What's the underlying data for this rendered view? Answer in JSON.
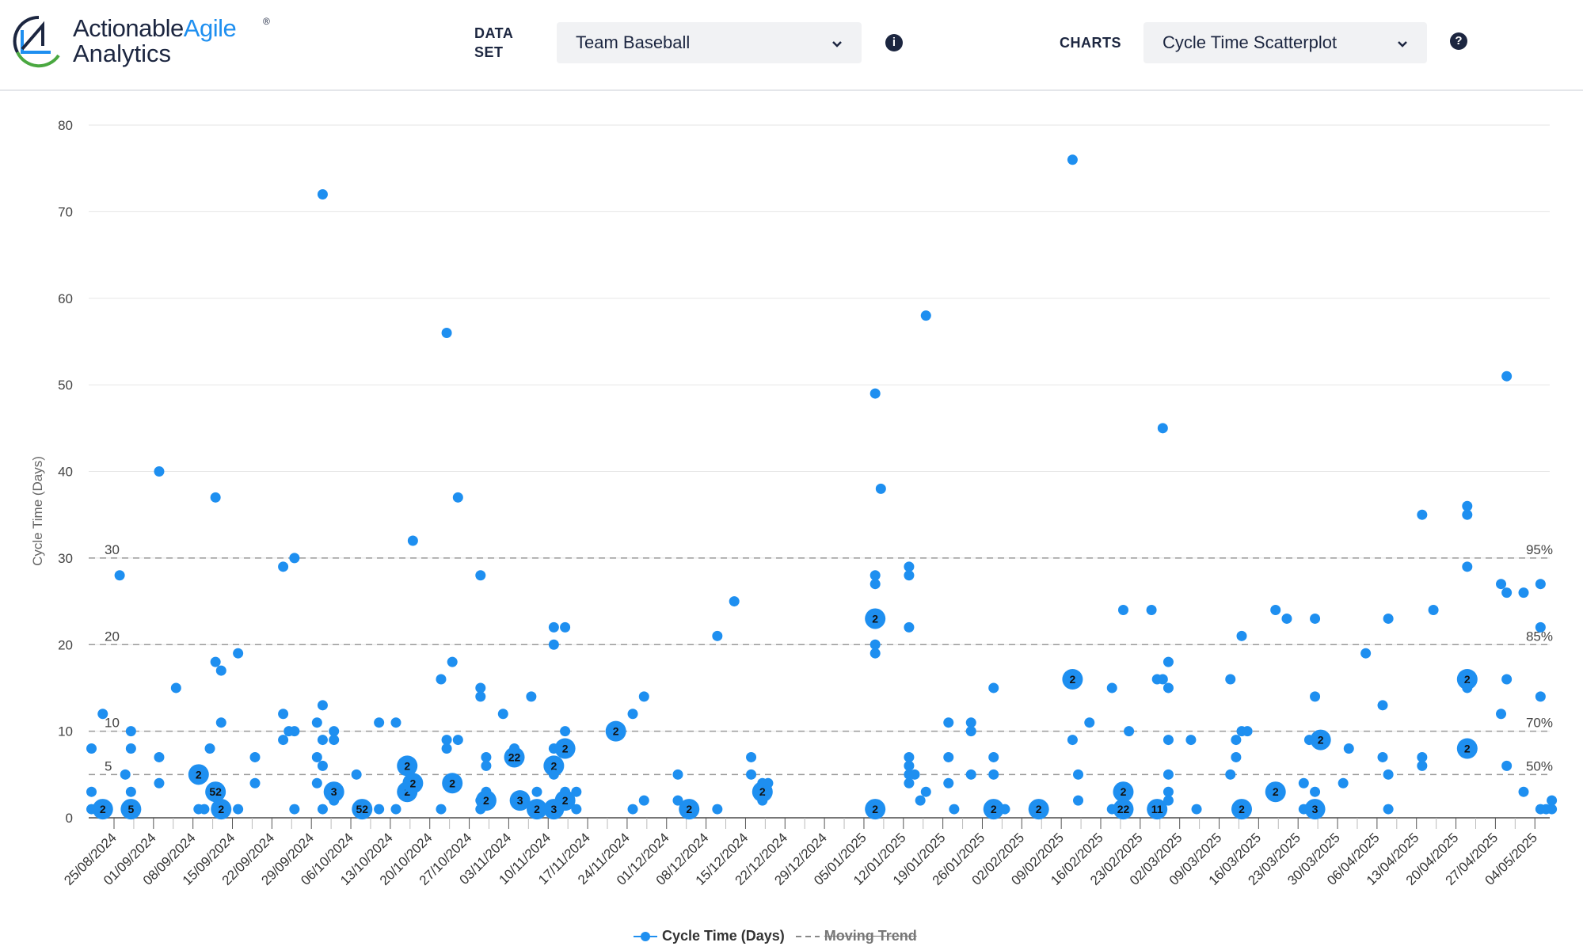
{
  "header": {
    "logo": {
      "word1": "Actionable",
      "word2": "Agile",
      "word3": "Analytics",
      "reg": "®"
    },
    "dataset_label_1": "DATA",
    "dataset_label_2": "SET",
    "dataset_value": "Team Baseball",
    "charts_label": "CHARTS",
    "charts_value": "Cycle Time Scatterplot",
    "info_icon": "i",
    "help_icon": "?"
  },
  "colors": {
    "accent": "#1e8ff0",
    "navy": "#1c2640"
  },
  "chart_data": {
    "type": "scatter",
    "ylabel": "Cycle Time (Days)",
    "ylim": [
      0,
      80
    ],
    "yticks": [
      0,
      10,
      20,
      30,
      40,
      50,
      60,
      70,
      80
    ],
    "x_origin": "25/08/2024",
    "xticks": [
      "25/08/2024",
      "01/09/2024",
      "08/09/2024",
      "15/09/2024",
      "22/09/2024",
      "29/09/2024",
      "06/10/2024",
      "13/10/2024",
      "20/10/2024",
      "27/10/2024",
      "03/11/2024",
      "10/11/2024",
      "17/11/2024",
      "24/11/2024",
      "01/12/2024",
      "08/12/2024",
      "15/12/2024",
      "22/12/2024",
      "29/12/2024",
      "05/01/2025",
      "12/01/2025",
      "19/01/2025",
      "26/01/2025",
      "02/02/2025",
      "09/02/2025",
      "16/02/2025",
      "23/02/2025",
      "02/03/2025",
      "09/03/2025",
      "16/03/2025",
      "23/03/2025",
      "30/03/2025",
      "06/04/2025",
      "13/04/2025",
      "20/04/2025",
      "27/04/2025",
      "04/05/2025"
    ],
    "percentiles": [
      {
        "label": "95%",
        "value": 30,
        "left": "30"
      },
      {
        "label": "85%",
        "value": 20,
        "left": "20"
      },
      {
        "label": "70%",
        "value": 10,
        "left": "10"
      },
      {
        "label": "50%",
        "value": 5,
        "left": "5"
      }
    ],
    "legend": [
      {
        "name": "Cycle Time (Days)"
      },
      {
        "name": "Moving Trend"
      }
    ],
    "points_note": "[day offset from x_origin, cycle time days, item count]",
    "points": [
      [
        -4,
        8,
        1
      ],
      [
        -4,
        3,
        1
      ],
      [
        -4,
        1,
        1
      ],
      [
        -2,
        12,
        1
      ],
      [
        -2,
        1,
        2
      ],
      [
        1,
        28,
        1
      ],
      [
        2,
        5,
        1
      ],
      [
        3,
        10,
        1
      ],
      [
        3,
        8,
        1
      ],
      [
        3,
        3,
        1
      ],
      [
        3,
        1,
        5
      ],
      [
        8,
        40,
        1
      ],
      [
        8,
        7,
        1
      ],
      [
        8,
        4,
        1
      ],
      [
        11,
        15,
        1
      ],
      [
        15,
        5,
        2
      ],
      [
        15,
        1,
        1
      ],
      [
        16,
        1,
        1
      ],
      [
        17,
        8,
        1
      ],
      [
        18,
        37,
        1
      ],
      [
        18,
        18,
        1
      ],
      [
        19,
        17,
        1
      ],
      [
        19,
        11,
        1
      ],
      [
        18,
        3,
        52
      ],
      [
        19,
        1,
        2
      ],
      [
        22,
        19,
        1
      ],
      [
        22,
        1,
        1
      ],
      [
        25,
        7,
        1
      ],
      [
        25,
        4,
        1
      ],
      [
        30,
        29,
        1
      ],
      [
        30,
        12,
        1
      ],
      [
        30,
        9,
        1
      ],
      [
        31,
        10,
        1
      ],
      [
        32,
        30,
        1
      ],
      [
        32,
        10,
        1
      ],
      [
        32,
        1,
        1
      ],
      [
        36,
        11,
        1
      ],
      [
        36,
        7,
        1
      ],
      [
        36,
        4,
        1
      ],
      [
        37,
        72,
        1
      ],
      [
        37,
        13,
        1
      ],
      [
        37,
        9,
        1
      ],
      [
        37,
        6,
        1
      ],
      [
        37,
        1,
        1
      ],
      [
        39,
        10,
        1
      ],
      [
        39,
        9,
        1
      ],
      [
        39,
        3,
        3
      ],
      [
        39,
        2,
        1
      ],
      [
        43,
        5,
        1
      ],
      [
        44,
        1,
        52
      ],
      [
        47,
        11,
        1
      ],
      [
        47,
        1,
        1
      ],
      [
        50,
        11,
        1
      ],
      [
        50,
        1,
        1
      ],
      [
        52,
        6,
        2
      ],
      [
        52,
        3,
        2
      ],
      [
        53,
        32,
        1
      ],
      [
        53,
        4,
        2
      ],
      [
        58,
        16,
        1
      ],
      [
        58,
        1,
        1
      ],
      [
        59,
        56,
        1
      ],
      [
        59,
        9,
        1
      ],
      [
        59,
        8,
        1
      ],
      [
        60,
        18,
        1
      ],
      [
        60,
        4,
        2
      ],
      [
        61,
        37,
        1
      ],
      [
        61,
        9,
        1
      ],
      [
        65,
        28,
        1
      ],
      [
        65,
        15,
        1
      ],
      [
        65,
        14,
        1
      ],
      [
        65,
        1,
        1
      ],
      [
        65,
        2,
        1
      ],
      [
        66,
        7,
        1
      ],
      [
        66,
        6,
        1
      ],
      [
        66,
        3,
        1
      ],
      [
        66,
        2,
        2
      ],
      [
        69,
        12,
        1
      ],
      [
        71,
        8,
        1
      ],
      [
        71,
        7,
        22
      ],
      [
        72,
        2,
        3
      ],
      [
        74,
        14,
        1
      ],
      [
        75,
        3,
        1
      ],
      [
        75,
        1,
        2
      ],
      [
        78,
        22,
        1
      ],
      [
        78,
        20,
        1
      ],
      [
        78,
        8,
        1
      ],
      [
        78,
        6,
        2
      ],
      [
        78,
        5,
        1
      ],
      [
        78,
        1,
        3
      ],
      [
        80,
        22,
        1
      ],
      [
        80,
        10,
        1
      ],
      [
        80,
        8,
        2
      ],
      [
        80,
        2,
        2
      ],
      [
        80,
        3,
        1
      ],
      [
        82,
        3,
        1
      ],
      [
        82,
        1,
        1
      ],
      [
        89,
        10,
        2
      ],
      [
        92,
        12,
        1
      ],
      [
        92,
        1,
        1
      ],
      [
        94,
        14,
        1
      ],
      [
        94,
        2,
        1
      ],
      [
        100,
        5,
        1
      ],
      [
        100,
        2,
        1
      ],
      [
        102,
        1,
        2
      ],
      [
        107,
        21,
        1
      ],
      [
        107,
        1,
        1
      ],
      [
        110,
        25,
        1
      ],
      [
        113,
        7,
        1
      ],
      [
        113,
        5,
        1
      ],
      [
        115,
        4,
        1
      ],
      [
        115,
        3,
        2
      ],
      [
        115,
        2,
        1
      ],
      [
        116,
        4,
        1
      ],
      [
        135,
        49,
        1
      ],
      [
        135,
        28,
        1
      ],
      [
        135,
        27,
        1
      ],
      [
        135,
        23,
        2
      ],
      [
        135,
        20,
        1
      ],
      [
        135,
        19,
        1
      ],
      [
        135,
        1,
        2
      ],
      [
        136,
        38,
        1
      ],
      [
        141,
        29,
        1
      ],
      [
        141,
        28,
        1
      ],
      [
        141,
        22,
        1
      ],
      [
        141,
        7,
        1
      ],
      [
        141,
        6,
        1
      ],
      [
        141,
        5,
        1
      ],
      [
        141,
        4,
        1
      ],
      [
        142,
        5,
        1
      ],
      [
        143,
        2,
        1
      ],
      [
        144,
        58,
        1
      ],
      [
        144,
        3,
        1
      ],
      [
        148,
        11,
        1
      ],
      [
        148,
        7,
        1
      ],
      [
        148,
        4,
        1
      ],
      [
        149,
        1,
        1
      ],
      [
        152,
        11,
        1
      ],
      [
        152,
        10,
        1
      ],
      [
        152,
        5,
        1
      ],
      [
        156,
        15,
        1
      ],
      [
        156,
        7,
        1
      ],
      [
        156,
        5,
        1
      ],
      [
        156,
        1,
        2
      ],
      [
        158,
        1,
        1
      ],
      [
        164,
        1,
        2
      ],
      [
        170,
        76,
        1
      ],
      [
        170,
        16,
        2
      ],
      [
        170,
        9,
        1
      ],
      [
        171,
        5,
        1
      ],
      [
        171,
        2,
        1
      ],
      [
        173,
        11,
        1
      ],
      [
        177,
        15,
        1
      ],
      [
        177,
        1,
        1
      ],
      [
        179,
        24,
        1
      ],
      [
        179,
        3,
        2
      ],
      [
        179,
        1,
        22
      ],
      [
        180,
        10,
        1
      ],
      [
        184,
        24,
        1
      ],
      [
        185,
        16,
        1
      ],
      [
        185,
        1,
        11
      ],
      [
        186,
        45,
        1
      ],
      [
        186,
        16,
        1
      ],
      [
        187,
        18,
        1
      ],
      [
        187,
        15,
        1
      ],
      [
        187,
        9,
        1
      ],
      [
        187,
        5,
        1
      ],
      [
        187,
        3,
        1
      ],
      [
        187,
        2,
        1
      ],
      [
        191,
        9,
        1
      ],
      [
        192,
        1,
        1
      ],
      [
        198,
        16,
        1
      ],
      [
        198,
        5,
        1
      ],
      [
        199,
        9,
        1
      ],
      [
        199,
        7,
        1
      ],
      [
        200,
        21,
        1
      ],
      [
        200,
        10,
        1
      ],
      [
        200,
        1,
        2
      ],
      [
        201,
        10,
        1
      ],
      [
        206,
        24,
        1
      ],
      [
        206,
        3,
        2
      ],
      [
        208,
        23,
        1
      ],
      [
        211,
        4,
        1
      ],
      [
        211,
        1,
        1
      ],
      [
        212,
        9,
        1
      ],
      [
        213,
        23,
        1
      ],
      [
        213,
        14,
        1
      ],
      [
        213,
        3,
        1
      ],
      [
        213,
        1,
        3
      ],
      [
        214,
        9,
        2
      ],
      [
        218,
        4,
        1
      ],
      [
        219,
        8,
        1
      ],
      [
        222,
        19,
        1
      ],
      [
        225,
        13,
        1
      ],
      [
        225,
        7,
        1
      ],
      [
        226,
        23,
        1
      ],
      [
        226,
        5,
        1
      ],
      [
        226,
        1,
        1
      ],
      [
        232,
        35,
        1
      ],
      [
        232,
        7,
        1
      ],
      [
        232,
        6,
        1
      ],
      [
        234,
        24,
        1
      ],
      [
        240,
        36,
        1
      ],
      [
        240,
        35,
        1
      ],
      [
        240,
        29,
        1
      ],
      [
        240,
        16,
        2
      ],
      [
        240,
        15,
        1
      ],
      [
        240,
        8,
        2
      ],
      [
        246,
        27,
        1
      ],
      [
        246,
        12,
        1
      ],
      [
        247,
        51,
        1
      ],
      [
        247,
        26,
        1
      ],
      [
        247,
        16,
        1
      ],
      [
        247,
        6,
        1
      ],
      [
        250,
        26,
        1
      ],
      [
        250,
        3,
        1
      ],
      [
        253,
        27,
        1
      ],
      [
        253,
        22,
        1
      ],
      [
        253,
        14,
        1
      ],
      [
        253,
        1,
        1
      ],
      [
        254,
        1,
        1
      ],
      [
        255,
        2,
        1
      ],
      [
        255,
        1,
        1
      ]
    ]
  }
}
